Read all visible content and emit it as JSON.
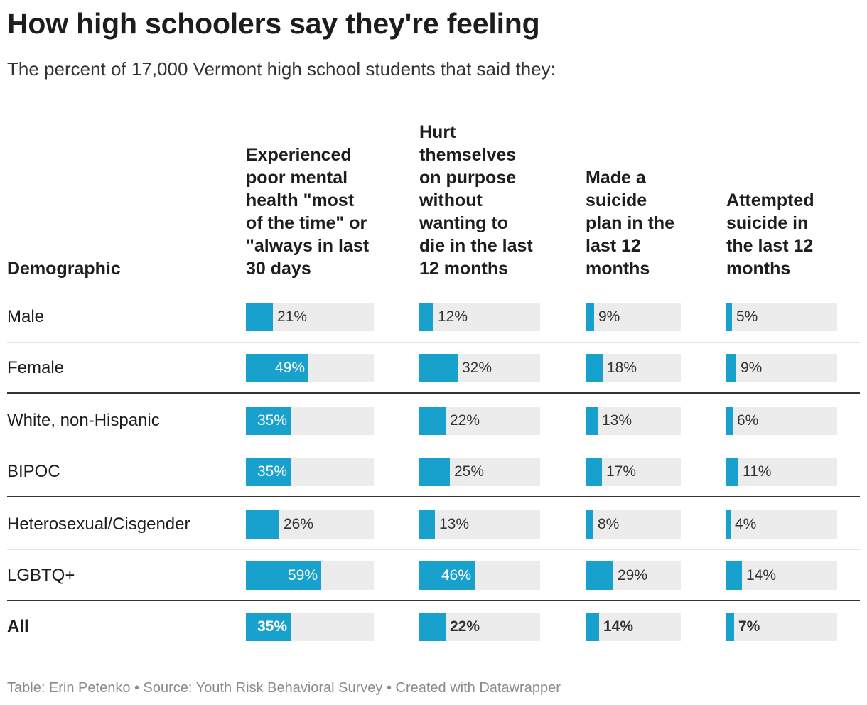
{
  "title": "How high schoolers say they're feeling",
  "subtitle": "The percent of 17,000 Vermont high school students that said they:",
  "footer": "Table: Erin Petenko • Source: Youth Risk Behavioral Survey • Created with Datawrapper",
  "colors": {
    "bar": "#18a1cd",
    "track": "#ececec"
  },
  "chart_data": {
    "type": "table",
    "row_header": "Demographic",
    "columns": [
      {
        "lines": [
          "Experienced",
          "poor mental",
          "health \"most",
          "of the time\" or",
          "\"always in last",
          "30 days"
        ]
      },
      {
        "lines": [
          "Hurt",
          "themselves",
          "on purpose",
          "without",
          "wanting to",
          "die in the last",
          "12 months"
        ]
      },
      {
        "lines": [
          "Made a",
          "suicide",
          "plan in the",
          "last 12",
          "months"
        ]
      },
      {
        "lines": [
          "Attempted",
          "suicide in",
          "the last 12",
          "months"
        ]
      }
    ],
    "value_range": [
      0,
      100
    ],
    "unit": "%",
    "rows": [
      {
        "label": "Male",
        "values": [
          21,
          12,
          9,
          5
        ],
        "labels": [
          "21%",
          "12%",
          "9%",
          "5%"
        ]
      },
      {
        "label": "Female",
        "values": [
          49,
          32,
          18,
          9
        ],
        "labels": [
          "49%",
          "32%",
          "18%",
          "9%"
        ]
      },
      {
        "label": "White, non-Hispanic",
        "values": [
          35,
          22,
          13,
          6
        ],
        "labels": [
          "35%",
          "22%",
          "13%",
          "6%"
        ]
      },
      {
        "label": "BIPOC",
        "values": [
          35,
          25,
          17,
          11
        ],
        "labels": [
          "35%",
          "25%",
          "17%",
          "11%"
        ]
      },
      {
        "label": "Heterosexual/Cisgender",
        "values": [
          26,
          13,
          8,
          4
        ],
        "labels": [
          "26%",
          "13%",
          "8%",
          "4%"
        ]
      },
      {
        "label": "LGBTQ+",
        "values": [
          59,
          46,
          29,
          14
        ],
        "labels": [
          "59%",
          "46%",
          "29%",
          "14%"
        ]
      },
      {
        "label": "All",
        "values": [
          35,
          22,
          14,
          7
        ],
        "labels": [
          "35%",
          "22%",
          "14%",
          "7%"
        ],
        "bold": true
      }
    ]
  }
}
